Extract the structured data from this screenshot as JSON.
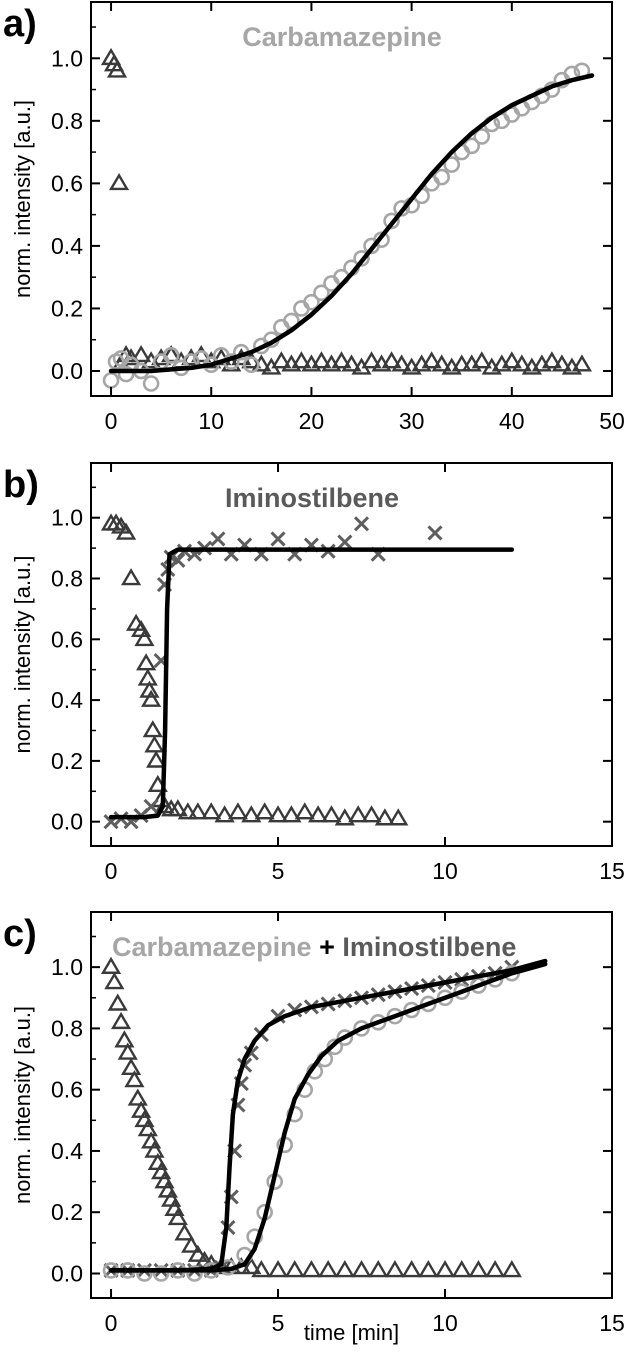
{
  "colors": {
    "light_gray": "#a6a6a6",
    "dark_gray": "#3a3a3a",
    "cross_gray": "#5e5e5e",
    "fit_line": "#000000",
    "title_dark": "#5a5a5a"
  },
  "chart_data": [
    {
      "type": "scatter",
      "panel_label": "a)",
      "title": "Carbamazepine",
      "title_parts": [
        {
          "text": "Carbamazepine",
          "color": "#a6a6a6"
        }
      ],
      "xlabel": "",
      "ylabel": "norm. intensity [a.u.]",
      "xlim": [
        -2,
        50
      ],
      "ylim": [
        -0.08,
        1.18
      ],
      "xticks": [
        0,
        10,
        20,
        30,
        40,
        50
      ],
      "yticks": [
        0.0,
        0.2,
        0.4,
        0.6,
        0.8,
        1.0
      ],
      "grid": false,
      "series": [
        {
          "marker": "triangle",
          "color": "#3a3a3a",
          "x": [
            0,
            0.3,
            0.6,
            0.8,
            1,
            1.5,
            2,
            3,
            4,
            5,
            6,
            7,
            8,
            9,
            10,
            11,
            12,
            13,
            14,
            15,
            16,
            17,
            18,
            19,
            20,
            21,
            22,
            23,
            24,
            25,
            26,
            27,
            28,
            29,
            30,
            31,
            32,
            33,
            34,
            35,
            36,
            37,
            38,
            39,
            40,
            41,
            42,
            43,
            44,
            45,
            46,
            47
          ],
          "y": [
            1.0,
            0.98,
            0.96,
            0.6,
            0.02,
            0.05,
            0.04,
            0.05,
            0.03,
            0.04,
            0.05,
            0.03,
            0.04,
            0.05,
            0.03,
            0.04,
            0.02,
            0.04,
            0.03,
            0.02,
            0.01,
            0.03,
            0.02,
            0.03,
            0.02,
            0.03,
            0.02,
            0.03,
            0.02,
            0.01,
            0.03,
            0.02,
            0.03,
            0.02,
            0.01,
            0.02,
            0.03,
            0.02,
            0.01,
            0.02,
            0.02,
            0.03,
            0.01,
            0.02,
            0.03,
            0.02,
            0.01,
            0.02,
            0.03,
            0.02,
            0.01,
            0.02
          ]
        },
        {
          "marker": "circle",
          "color": "#a6a6a6",
          "x": [
            0,
            0.5,
            1,
            1.5,
            2,
            3,
            4,
            5,
            6,
            7,
            8,
            9,
            10,
            11,
            12,
            13,
            14,
            15,
            16,
            17,
            18,
            19,
            20,
            21,
            22,
            23,
            24,
            25,
            26,
            27,
            28,
            29,
            30,
            31,
            32,
            33,
            34,
            35,
            36,
            37,
            38,
            39,
            40,
            41,
            42,
            43,
            44,
            45,
            46,
            47
          ],
          "y": [
            -0.03,
            0.03,
            0.04,
            -0.01,
            0.02,
            0.0,
            -0.04,
            0.03,
            0.05,
            0.01,
            0.03,
            0.04,
            0.02,
            0.05,
            0.03,
            0.06,
            0.02,
            0.08,
            0.1,
            0.14,
            0.16,
            0.2,
            0.22,
            0.25,
            0.28,
            0.3,
            0.33,
            0.36,
            0.4,
            0.42,
            0.48,
            0.52,
            0.53,
            0.56,
            0.6,
            0.62,
            0.66,
            0.7,
            0.72,
            0.75,
            0.79,
            0.8,
            0.82,
            0.84,
            0.86,
            0.88,
            0.9,
            0.93,
            0.95,
            0.96
          ]
        }
      ],
      "fit": {
        "x": [
          0,
          2,
          4,
          6,
          8,
          10,
          12,
          14,
          16,
          18,
          20,
          22,
          24,
          26,
          28,
          30,
          32,
          34,
          36,
          38,
          40,
          42,
          44,
          46,
          48
        ],
        "y": [
          0.0,
          0.0,
          0.0,
          0.005,
          0.01,
          0.02,
          0.04,
          0.06,
          0.09,
          0.13,
          0.18,
          0.24,
          0.31,
          0.39,
          0.47,
          0.55,
          0.63,
          0.7,
          0.76,
          0.81,
          0.85,
          0.88,
          0.91,
          0.93,
          0.945
        ]
      }
    },
    {
      "type": "scatter",
      "panel_label": "b)",
      "title": "Iminostilbene",
      "title_parts": [
        {
          "text": "Iminostilbene",
          "color": "#5a5a5a"
        }
      ],
      "xlabel": "",
      "ylabel": "norm. intensity [a.u.]",
      "xlim": [
        -0.6,
        15
      ],
      "ylim": [
        -0.08,
        1.18
      ],
      "xticks": [
        0,
        5,
        10,
        15
      ],
      "yticks": [
        0.0,
        0.2,
        0.4,
        0.6,
        0.8,
        1.0
      ],
      "grid": false,
      "series": [
        {
          "marker": "triangle",
          "color": "#3a3a3a",
          "x": [
            0,
            0.15,
            0.3,
            0.45,
            0.6,
            0.75,
            0.9,
            1.0,
            1.05,
            1.1,
            1.15,
            1.2,
            1.25,
            1.3,
            1.35,
            1.4,
            1.5,
            1.6,
            1.8,
            2.0,
            2.3,
            2.6,
            3.0,
            3.4,
            3.8,
            4.2,
            4.6,
            5.0,
            5.4,
            5.8,
            6.2,
            6.6,
            7.0,
            7.4,
            7.8,
            8.2,
            8.6
          ],
          "y": [
            0.98,
            0.98,
            0.97,
            0.95,
            0.8,
            0.65,
            0.63,
            0.6,
            0.52,
            0.47,
            0.43,
            0.4,
            0.3,
            0.25,
            0.2,
            0.12,
            0.07,
            0.05,
            0.04,
            0.04,
            0.03,
            0.03,
            0.03,
            0.02,
            0.03,
            0.02,
            0.03,
            0.02,
            0.02,
            0.03,
            0.02,
            0.02,
            0.01,
            0.02,
            0.02,
            0.01,
            0.01
          ]
        },
        {
          "marker": "cross",
          "color": "#5e5e5e",
          "x": [
            0,
            0.3,
            0.6,
            0.9,
            1.2,
            1.5,
            1.6,
            1.7,
            1.8,
            2.0,
            2.2,
            2.5,
            2.8,
            3.2,
            3.6,
            4.0,
            4.5,
            5.0,
            5.5,
            6.0,
            6.5,
            7.0,
            7.5,
            8.0,
            9.7
          ],
          "y": [
            0.0,
            0.01,
            0.0,
            0.02,
            0.05,
            0.53,
            0.78,
            0.83,
            0.87,
            0.86,
            0.89,
            0.88,
            0.9,
            0.93,
            0.88,
            0.91,
            0.88,
            0.93,
            0.88,
            0.91,
            0.89,
            0.92,
            0.98,
            0.88,
            0.95
          ]
        }
      ],
      "fit": {
        "x": [
          0,
          1.0,
          1.4,
          1.55,
          1.62,
          1.68,
          1.75,
          2.0,
          4,
          6,
          8,
          10,
          12
        ],
        "y": [
          0.015,
          0.015,
          0.02,
          0.05,
          0.3,
          0.7,
          0.88,
          0.895,
          0.895,
          0.895,
          0.895,
          0.895,
          0.895
        ]
      }
    },
    {
      "type": "scatter",
      "panel_label": "c)",
      "title": "Carbamazepine + Iminostilbene",
      "title_parts": [
        {
          "text": "Carbamazepine",
          "color": "#a6a6a6"
        },
        {
          "text": " + ",
          "color": "#000000"
        },
        {
          "text": "Iminostilbene",
          "color": "#5a5a5a"
        }
      ],
      "xlabel": "time [min]",
      "ylabel": "norm. intensity [a.u.]",
      "xlim": [
        -0.6,
        15
      ],
      "ylim": [
        -0.08,
        1.18
      ],
      "xticks": [
        0,
        5,
        10,
        15
      ],
      "yticks": [
        0.0,
        0.2,
        0.4,
        0.6,
        0.8,
        1.0
      ],
      "grid": false,
      "series": [
        {
          "marker": "triangle",
          "color": "#3a3a3a",
          "x": [
            0,
            0.1,
            0.2,
            0.3,
            0.4,
            0.5,
            0.6,
            0.7,
            0.8,
            0.9,
            1.0,
            1.1,
            1.2,
            1.3,
            1.4,
            1.5,
            1.6,
            1.7,
            1.8,
            1.9,
            2.0,
            2.2,
            2.4,
            2.6,
            2.8,
            3.0,
            3.3,
            3.6,
            3.9,
            4.2,
            4.5,
            5.0,
            5.5,
            6.0,
            6.5,
            7.0,
            7.5,
            8.0,
            8.5,
            9.0,
            9.5,
            10.0,
            10.5,
            11.0,
            11.5,
            12.0
          ],
          "y": [
            1.0,
            0.95,
            0.88,
            0.82,
            0.76,
            0.72,
            0.67,
            0.63,
            0.57,
            0.53,
            0.5,
            0.47,
            0.43,
            0.4,
            0.36,
            0.33,
            0.3,
            0.27,
            0.24,
            0.21,
            0.18,
            0.13,
            0.09,
            0.06,
            0.04,
            0.03,
            0.02,
            0.02,
            0.02,
            0.02,
            0.01,
            0.01,
            0.01,
            0.01,
            0.01,
            0.01,
            0.01,
            0.01,
            0.01,
            0.01,
            0.01,
            0.01,
            0.01,
            0.01,
            0.01,
            0.01
          ]
        },
        {
          "marker": "cross",
          "color": "#5e5e5e",
          "x": [
            0,
            0.5,
            1.0,
            1.5,
            2.0,
            2.5,
            3.0,
            3.3,
            3.5,
            3.6,
            3.7,
            3.8,
            3.9,
            4.0,
            4.2,
            4.5,
            5.0,
            5.5,
            6.0,
            6.5,
            7.0,
            7.5,
            8.0,
            8.5,
            9.0,
            9.5,
            10.0,
            10.5,
            11.0,
            11.5,
            12.0
          ],
          "y": [
            0.01,
            0.01,
            0.01,
            0.01,
            0.01,
            0.01,
            0.01,
            0.02,
            0.15,
            0.25,
            0.4,
            0.55,
            0.62,
            0.68,
            0.72,
            0.78,
            0.84,
            0.86,
            0.87,
            0.88,
            0.89,
            0.9,
            0.91,
            0.92,
            0.93,
            0.94,
            0.95,
            0.96,
            0.97,
            0.98,
            1.0
          ]
        },
        {
          "marker": "circle",
          "color": "#a6a6a6",
          "x": [
            0,
            0.5,
            1.0,
            1.5,
            2.0,
            2.5,
            3.0,
            3.5,
            4.0,
            4.3,
            4.6,
            4.9,
            5.2,
            5.5,
            5.8,
            6.1,
            6.4,
            6.7,
            7.0,
            7.5,
            8.0,
            8.5,
            9.0,
            9.5,
            10.0,
            10.5,
            11.0,
            11.5,
            12.0
          ],
          "y": [
            0.01,
            0.01,
            0.0,
            0.0,
            0.01,
            0.0,
            0.01,
            0.02,
            0.06,
            0.12,
            0.2,
            0.3,
            0.42,
            0.52,
            0.6,
            0.66,
            0.7,
            0.74,
            0.77,
            0.8,
            0.82,
            0.84,
            0.86,
            0.88,
            0.9,
            0.92,
            0.94,
            0.96,
            0.98
          ]
        }
      ],
      "fits": [
        {
          "x": [
            0,
            2.0,
            3.0,
            3.3,
            3.45,
            3.55,
            3.65,
            3.8,
            4.0,
            4.3,
            4.7,
            5.2,
            6.0,
            7.0,
            8.0,
            9.0,
            10.0,
            11.0,
            12.0,
            13.0
          ],
          "y": [
            0.01,
            0.01,
            0.015,
            0.03,
            0.15,
            0.35,
            0.52,
            0.63,
            0.7,
            0.76,
            0.81,
            0.84,
            0.87,
            0.89,
            0.91,
            0.93,
            0.95,
            0.97,
            0.99,
            1.02
          ]
        },
        {
          "x": [
            0,
            3.0,
            3.6,
            4.0,
            4.3,
            4.6,
            4.9,
            5.2,
            5.5,
            5.9,
            6.3,
            6.8,
            7.5,
            8.5,
            9.5,
            10.5,
            11.5,
            12.0,
            13.0
          ],
          "y": [
            0.01,
            0.01,
            0.015,
            0.03,
            0.08,
            0.18,
            0.32,
            0.46,
            0.57,
            0.65,
            0.71,
            0.76,
            0.8,
            0.84,
            0.88,
            0.92,
            0.96,
            0.98,
            1.01
          ]
        }
      ]
    }
  ]
}
